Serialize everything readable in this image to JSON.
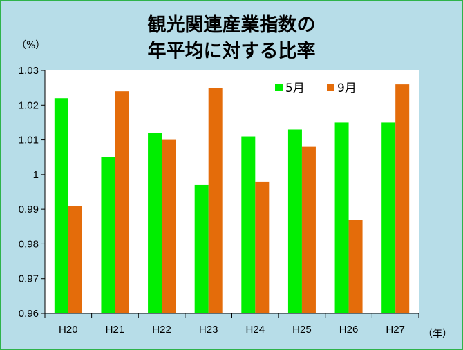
{
  "chart_data": {
    "type": "bar",
    "title_lines": [
      "観光関連産業指数の",
      "年平均に対する比率"
    ],
    "y_unit": "（%）",
    "x_unit": "（年）",
    "categories": [
      "H20",
      "H21",
      "H22",
      "H23",
      "H24",
      "H25",
      "H26",
      "H27"
    ],
    "series": [
      {
        "name": "5月",
        "color": "#00ee00",
        "values": [
          1.022,
          1.005,
          1.012,
          0.997,
          1.011,
          1.013,
          1.015,
          1.015
        ]
      },
      {
        "name": "9月",
        "color": "#e46c0a",
        "values": [
          0.991,
          1.024,
          1.01,
          1.025,
          0.998,
          1.008,
          0.987,
          1.026
        ]
      }
    ],
    "ylim": [
      0.96,
      1.03
    ],
    "yticks": [
      "0.96",
      "0.97",
      "0.98",
      "0.99",
      "1",
      "1.01",
      "1.02",
      "1.03"
    ],
    "grid": false,
    "legend_position": "top-right"
  },
  "colors": {
    "background": "#b7dde8",
    "border": "#2fb34a",
    "plot_background": "#ffffff"
  }
}
